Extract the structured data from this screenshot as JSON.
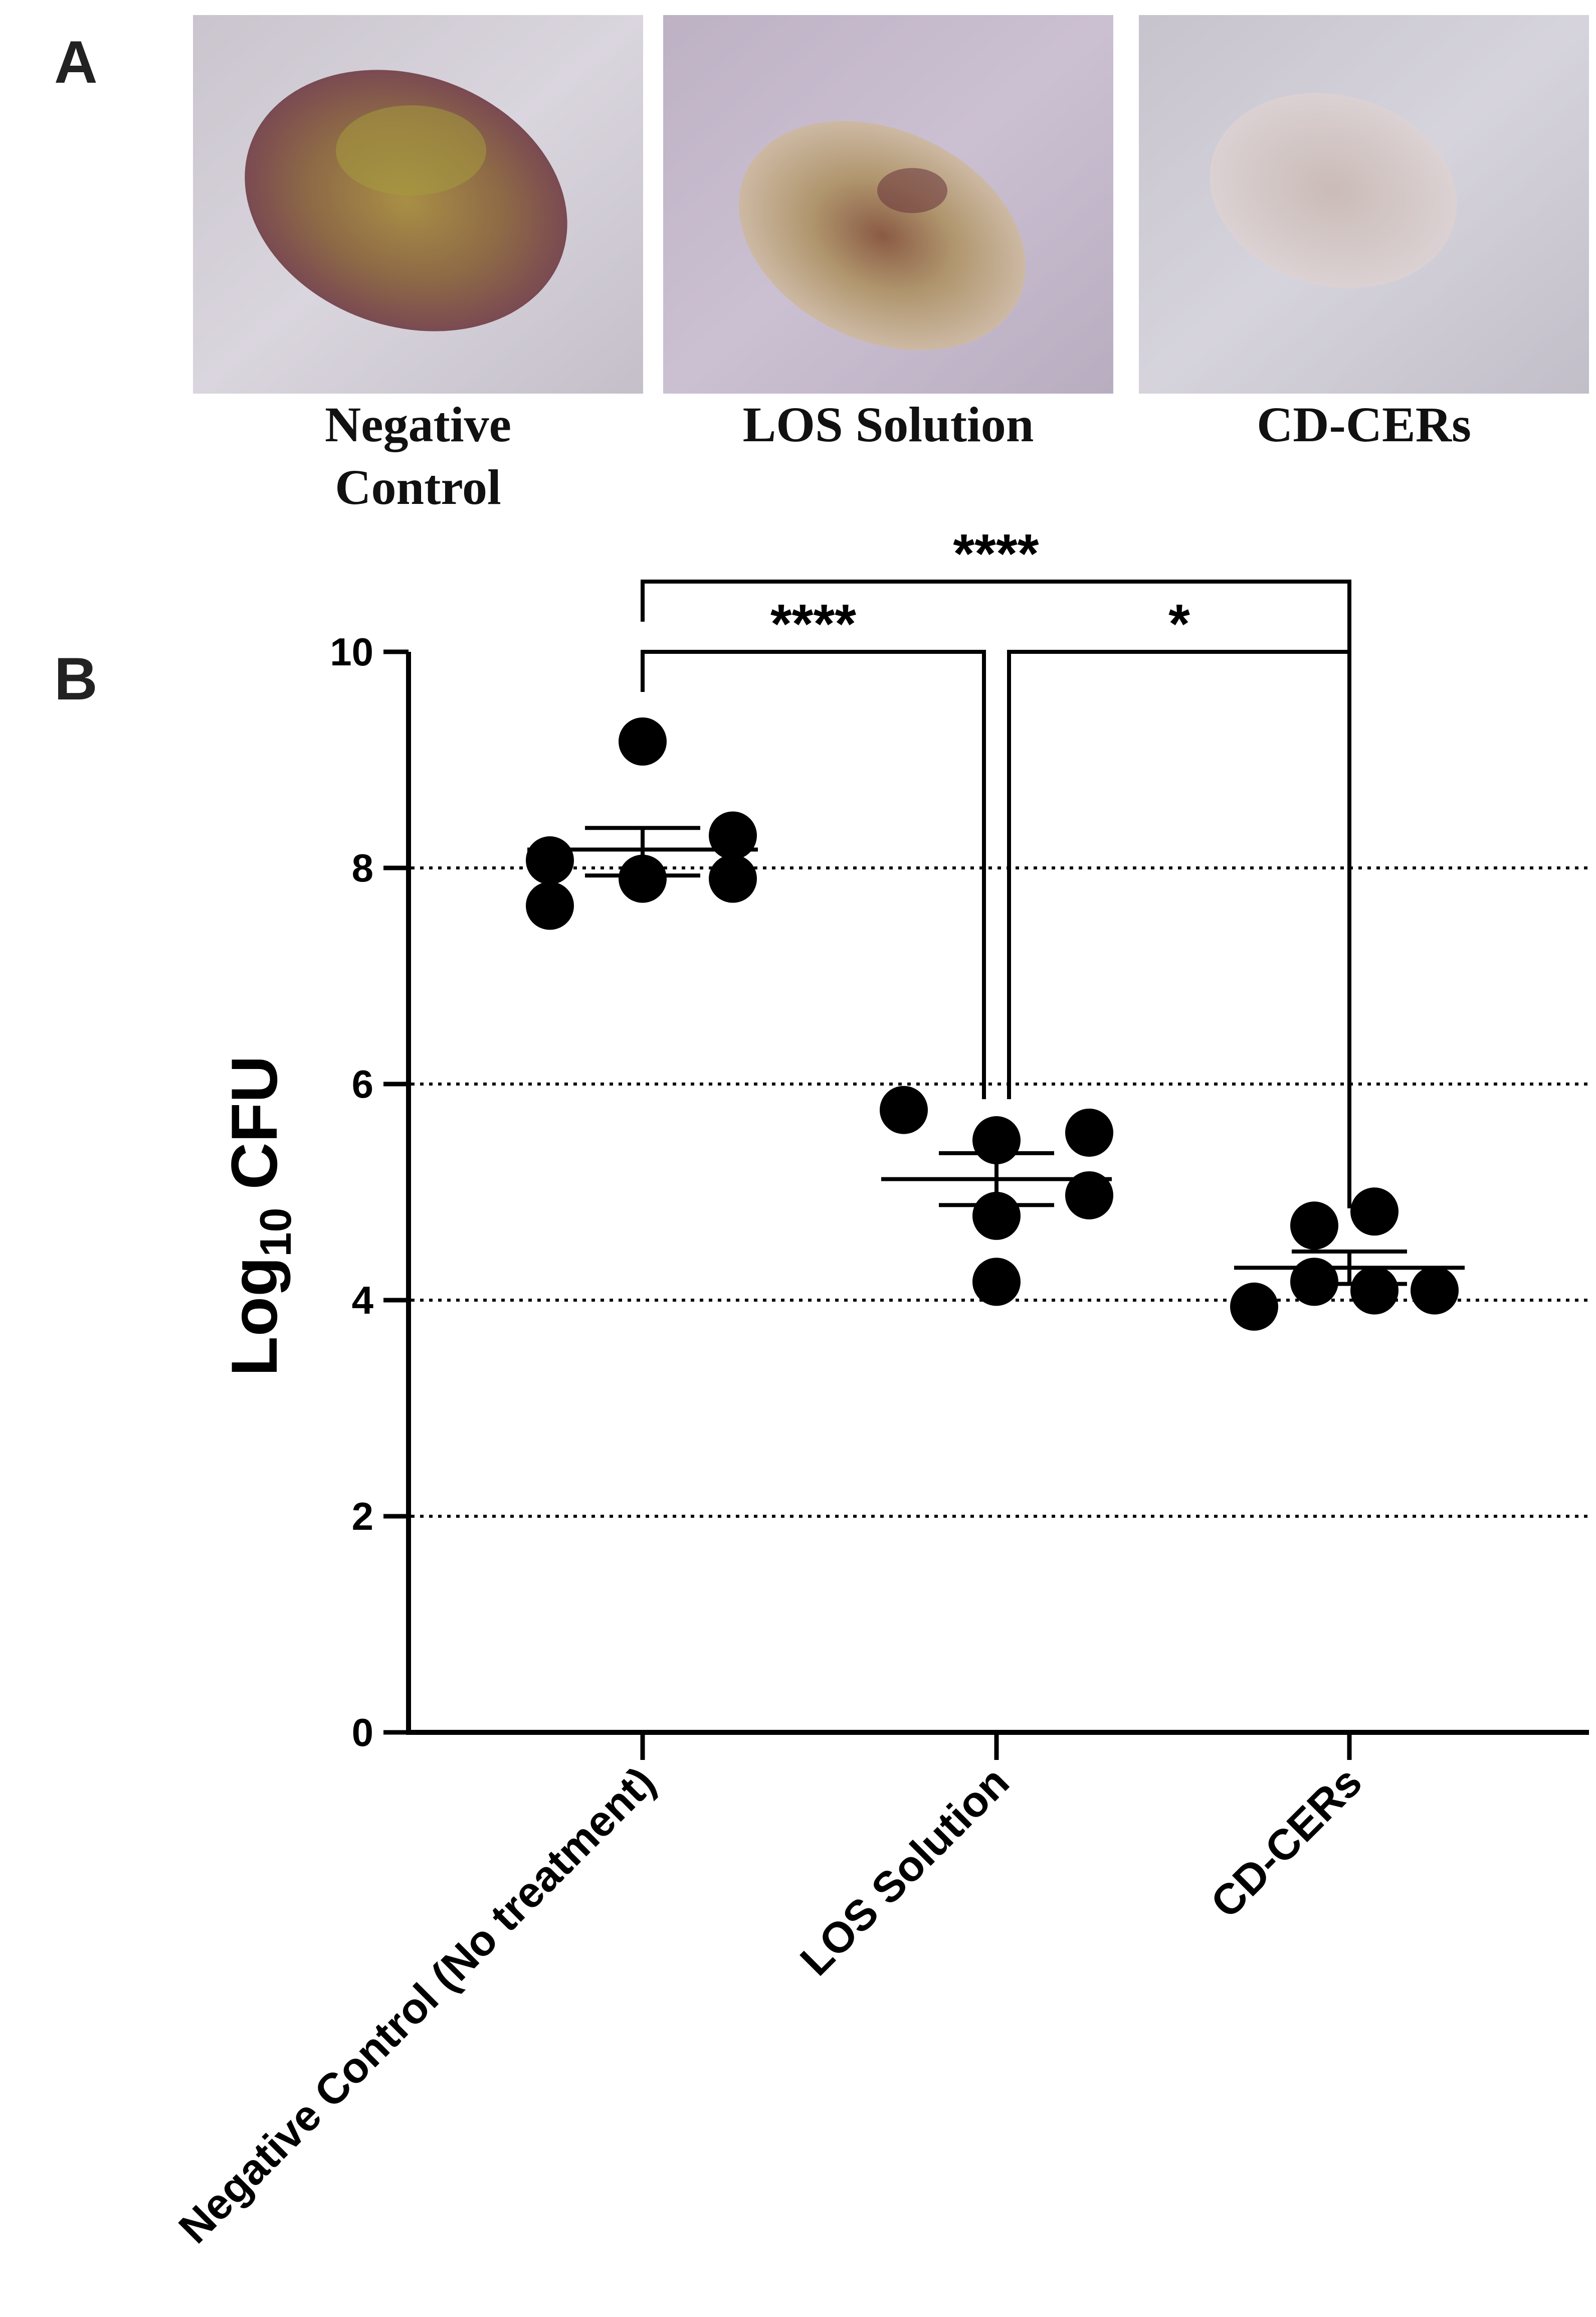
{
  "panel_a": {
    "label": "A",
    "photos": [
      {
        "caption_lines": [
          "Negative",
          "Control"
        ],
        "wound": "severe"
      },
      {
        "caption_lines": [
          "LOS Solution"
        ],
        "wound": "moderate"
      },
      {
        "caption_lines": [
          "CD-CERs"
        ],
        "wound": "mild"
      }
    ]
  },
  "panel_b": {
    "label": "B"
  },
  "chart_data": {
    "type": "scatter",
    "title": "",
    "xlabel": "",
    "ylabel": "Log10 CFU",
    "ylabel_parts": {
      "base": "Log",
      "sub": "10",
      "rest": " CFU"
    },
    "ylim": [
      0,
      10
    ],
    "yticks": [
      "0",
      "2",
      "4",
      "6",
      "8",
      "10"
    ],
    "grid": {
      "dotted_y": [
        2,
        4,
        6,
        8
      ]
    },
    "categories": [
      "Negative Control (No treatment)",
      "LOS Solution",
      "CD-CERs"
    ],
    "series": [
      {
        "name": "Negative Control (No treatment)",
        "points": [
          9.17,
          8.07,
          7.65,
          7.9,
          8.3,
          7.9
        ],
        "mean": 8.17,
        "sem_upper": 8.37,
        "sem_lower": 7.93
      },
      {
        "name": "LOS Solution",
        "points": [
          5.76,
          5.48,
          4.78,
          4.17,
          5.55,
          4.97
        ],
        "mean": 5.12,
        "sem_upper": 5.36,
        "sem_lower": 4.88
      },
      {
        "name": "CD-CERs",
        "points": [
          3.94,
          4.69,
          4.17,
          4.82,
          4.09,
          4.09
        ],
        "mean": 4.3,
        "sem_upper": 4.45,
        "sem_lower": 4.15
      }
    ],
    "significance": [
      {
        "from": 0,
        "to": 2,
        "label": "****",
        "level": 10.65
      },
      {
        "from": 0,
        "to": 1,
        "label": "****",
        "level": 10.0
      },
      {
        "from": 1,
        "to": 2,
        "label": "*",
        "level": 10.0
      }
    ]
  }
}
